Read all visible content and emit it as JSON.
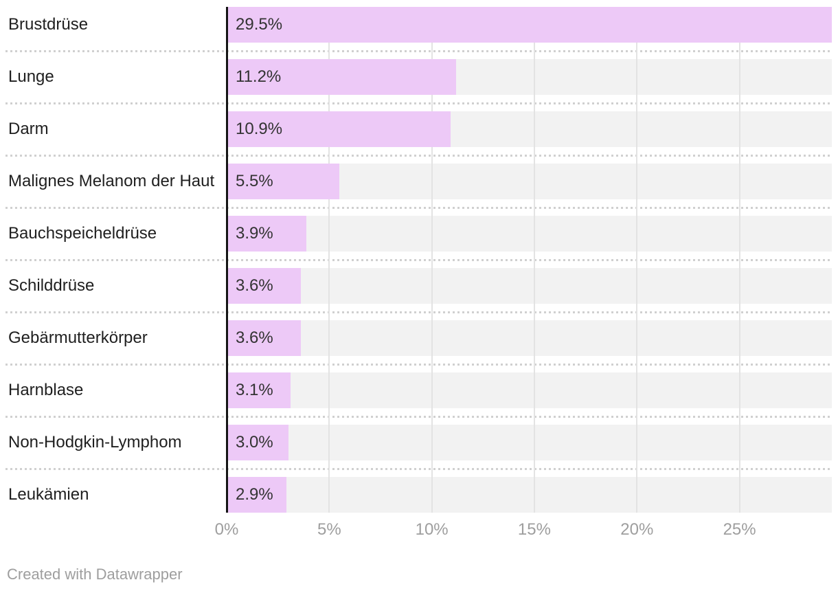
{
  "chart_data": {
    "type": "bar",
    "orientation": "horizontal",
    "categories": [
      "Brustdrüse",
      "Lunge",
      "Darm",
      "Malignes Melanom der Haut",
      "Bauchspeicheldrüse",
      "Schilddrüse",
      "Gebärmutterkörper",
      "Harnblase",
      "Non-Hodgkin-Lymphom",
      "Leukämien"
    ],
    "values": [
      29.5,
      11.2,
      10.9,
      5.5,
      3.9,
      3.6,
      3.6,
      3.1,
      3.0,
      2.9
    ],
    "value_labels": [
      "29.5%",
      "11.2%",
      "10.9%",
      "5.5%",
      "3.9%",
      "3.6%",
      "3.6%",
      "3.1%",
      "3.0%",
      "2.9%"
    ],
    "x_ticks": [
      {
        "value": 0,
        "label": "0%"
      },
      {
        "value": 5,
        "label": "5%"
      },
      {
        "value": 10,
        "label": "10%"
      },
      {
        "value": 15,
        "label": "15%"
      },
      {
        "value": 20,
        "label": "20%"
      },
      {
        "value": 25,
        "label": "25%"
      }
    ],
    "xlim": [
      0,
      29.5
    ],
    "grid": true,
    "legend": "none",
    "title": "",
    "xlabel": "",
    "ylabel": "",
    "colors": {
      "bar": "#edc9f7",
      "track": "#f2f2f2",
      "gridline": "#e3e3e3",
      "axis": "#151515",
      "label_text": "#1f1f1f",
      "value_text": "#333333",
      "tick_text": "#9e9e9e"
    }
  },
  "footer": {
    "credit": "Created with Datawrapper"
  }
}
